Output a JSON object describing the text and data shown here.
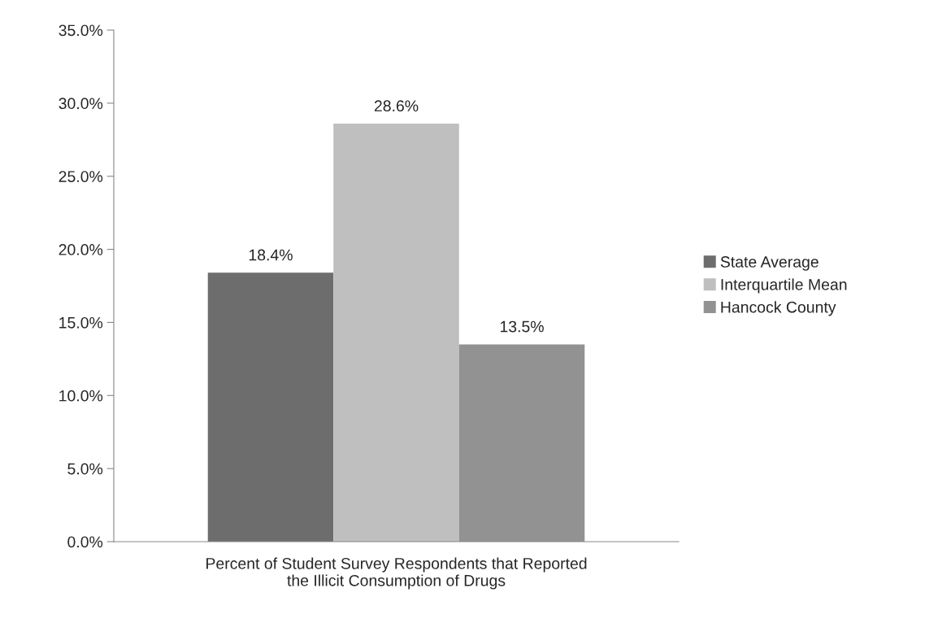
{
  "chart_data": {
    "type": "bar",
    "categories": [
      "Percent of Student Survey Respondents that Reported\nthe Illicit Consumption of Drugs"
    ],
    "series": [
      {
        "name": "State Average",
        "color": "#6d6d6d",
        "values": [
          18.4
        ],
        "value_labels": [
          "18.4%"
        ]
      },
      {
        "name": "Interquartile Mean",
        "color": "#bfbfbf",
        "values": [
          28.6
        ],
        "value_labels": [
          "28.6%"
        ]
      },
      {
        "name": "Hancock County",
        "color": "#929292",
        "values": [
          13.5
        ],
        "value_labels": [
          "13.5%"
        ]
      }
    ],
    "ylim": [
      0,
      35
    ],
    "yticks": [
      {
        "value": 0,
        "label": "0.0%"
      },
      {
        "value": 5,
        "label": "5.0%"
      },
      {
        "value": 10,
        "label": "10.0%"
      },
      {
        "value": 15,
        "label": "15.0%"
      },
      {
        "value": 20,
        "label": "20.0%"
      },
      {
        "value": 25,
        "label": "25.0%"
      },
      {
        "value": 30,
        "label": "30.0%"
      },
      {
        "value": 35,
        "label": "35.0%"
      }
    ],
    "grid": false,
    "legend": "right"
  }
}
